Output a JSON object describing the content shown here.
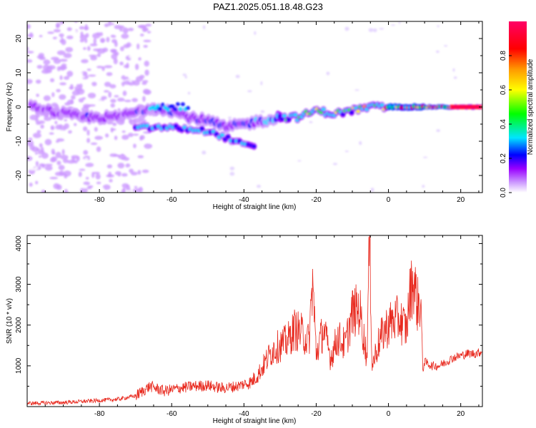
{
  "title": "PAZ1.2025.051.18.48.G23",
  "chart_data": [
    {
      "type": "heatmap",
      "xlabel": "Height of straight line (km)",
      "ylabel": "Frequency (Hz)",
      "xlim": [
        -100,
        26
      ],
      "ylim": [
        -25,
        25
      ],
      "xticks": [
        -80,
        -60,
        -40,
        -20,
        0,
        20
      ],
      "yticks": [
        -20,
        -10,
        0,
        10,
        20
      ],
      "colorbar": {
        "label": "Normalized spectral amplitude",
        "range": [
          0,
          1
        ],
        "ticks": [
          0.0,
          0.2,
          0.4,
          0.6,
          0.8
        ],
        "colors": [
          "#ffffff",
          "#cc99ff",
          "#9900ff",
          "#0000ff",
          "#00e5ff",
          "#00ff00",
          "#ffff00",
          "#ff9900",
          "#ff0000",
          "#ff0066"
        ]
      },
      "ridge": {
        "description_points": [
          {
            "x": -99,
            "y": 0,
            "amp": 0.2
          },
          {
            "x": -85,
            "y": -3,
            "amp": 0.25
          },
          {
            "x": -75,
            "y": -3,
            "amp": 0.25
          },
          {
            "x": -65,
            "y": 0,
            "amp": 0.3
          },
          {
            "x": -60,
            "y": -1,
            "amp": 0.3
          },
          {
            "x": -55,
            "y": -3,
            "amp": 0.3
          },
          {
            "x": -50,
            "y": -4,
            "amp": 0.3
          },
          {
            "x": -45,
            "y": -6,
            "amp": 0.3
          },
          {
            "x": -40,
            "y": -5,
            "amp": 0.35
          },
          {
            "x": -35,
            "y": -4,
            "amp": 0.4
          },
          {
            "x": -30,
            "y": -3,
            "amp": 0.5
          },
          {
            "x": -25,
            "y": -3,
            "amp": 0.55
          },
          {
            "x": -20,
            "y": -1,
            "amp": 0.55
          },
          {
            "x": -15,
            "y": -2,
            "amp": 0.6
          },
          {
            "x": -10,
            "y": -1,
            "amp": 0.6
          },
          {
            "x": -5,
            "y": 0,
            "amp": 0.7
          },
          {
            "x": 0,
            "y": 0,
            "amp": 0.8
          },
          {
            "x": 5,
            "y": 0,
            "amp": 0.8
          },
          {
            "x": 10,
            "y": 0,
            "amp": 0.85
          },
          {
            "x": 15,
            "y": 0,
            "amp": 0.9
          },
          {
            "x": 20,
            "y": 0,
            "amp": 0.95
          },
          {
            "x": 26,
            "y": 0,
            "amp": 1.0
          }
        ],
        "lower_branch": [
          {
            "x": -70,
            "y": -6
          },
          {
            "x": -60,
            "y": -6
          },
          {
            "x": -50,
            "y": -7
          },
          {
            "x": -45,
            "y": -9
          },
          {
            "x": -40,
            "y": -11
          },
          {
            "x": -37,
            "y": -12
          }
        ]
      }
    },
    {
      "type": "line",
      "xlabel": "Height of straight line (km)",
      "ylabel": "SNR (10 * v/v)",
      "xlim": [
        -100,
        26
      ],
      "ylim": [
        0,
        4200
      ],
      "xticks": [
        -80,
        -60,
        -40,
        -20,
        0,
        20
      ],
      "yticks": [
        1000,
        2000,
        3000,
        4000
      ],
      "color": "#e8291e",
      "series": [
        {
          "x": [
            -100,
            -90,
            -80,
            -75,
            -70,
            -66,
            -62,
            -58,
            -54,
            -50,
            -46,
            -42,
            -38,
            -36,
            -34,
            -32,
            -30,
            -28,
            -26,
            -24,
            -22,
            -21,
            -20,
            -18,
            -16,
            -14,
            -12,
            -10,
            -8,
            -6,
            -5.2,
            -4.5,
            -3,
            -1,
            1,
            3,
            5,
            6,
            7,
            8,
            9,
            9.5,
            10,
            12,
            14,
            16,
            18,
            20,
            22,
            24,
            26
          ],
          "y": [
            80,
            100,
            150,
            180,
            260,
            500,
            380,
            450,
            500,
            520,
            450,
            500,
            600,
            800,
            1100,
            1400,
            1500,
            1600,
            1900,
            1800,
            1600,
            3100,
            1300,
            1900,
            1200,
            1700,
            1500,
            2300,
            2400,
            1200,
            4150,
            1000,
            1500,
            1900,
            2100,
            2150,
            1900,
            2800,
            3100,
            2500,
            2600,
            900,
            1100,
            1000,
            1000,
            1100,
            1200,
            1250,
            1300,
            1300,
            1350
          ]
        }
      ]
    }
  ]
}
